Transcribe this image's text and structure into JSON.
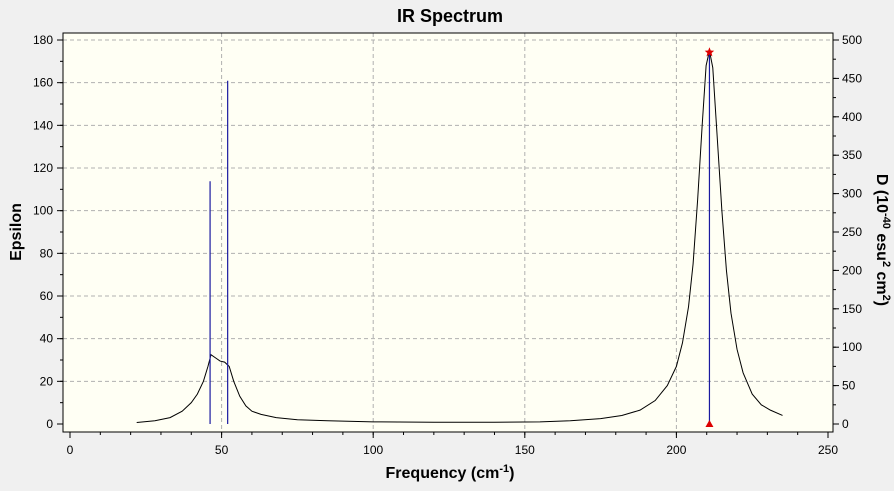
{
  "chart_data": {
    "type": "line",
    "title": "IR Spectrum",
    "xlabel": {
      "base": "Frequency (cm",
      "sup": "-1",
      "tail": ")"
    },
    "ylabel_left": "Epsilon",
    "ylabel_right": {
      "p1": "D (10",
      "sup1": "-40",
      "p2": " esu",
      "sup2": "2",
      "p3": " cm",
      "sup3": "2",
      "p4": ")"
    },
    "xlim": [
      0,
      250
    ],
    "ylim_left": [
      0,
      180
    ],
    "ylim_right": [
      0,
      500
    ],
    "x_ticks": [
      "0",
      "50",
      "100",
      "150",
      "200",
      "250"
    ],
    "y_left_ticks": [
      "0",
      "20",
      "40",
      "60",
      "80",
      "100",
      "120",
      "140",
      "160",
      "180"
    ],
    "y_right_ticks": [
      "0",
      "50",
      "100",
      "150",
      "200",
      "250",
      "300",
      "350",
      "400",
      "450",
      "500"
    ],
    "grid": true,
    "colors": {
      "spectrum": "#000000",
      "sticks": "#1a1aa0",
      "marker": "#dd0000",
      "plot_bg": "#fffff4",
      "grid": "#b0b0b0"
    },
    "series": [
      {
        "kind": "spectrum",
        "axis": "left",
        "points": [
          [
            22,
            0.7
          ],
          [
            28,
            1.5
          ],
          [
            33,
            3
          ],
          [
            37,
            6
          ],
          [
            40,
            10
          ],
          [
            42,
            14
          ],
          [
            44,
            20
          ],
          [
            45.5,
            27
          ],
          [
            46.5,
            32.5
          ],
          [
            48,
            31
          ],
          [
            49.5,
            29.5
          ],
          [
            51,
            29
          ],
          [
            52.5,
            27
          ],
          [
            54,
            20
          ],
          [
            56,
            13
          ],
          [
            58,
            8.5
          ],
          [
            60,
            6
          ],
          [
            63,
            4.5
          ],
          [
            68,
            3
          ],
          [
            75,
            2
          ],
          [
            85,
            1.5
          ],
          [
            100,
            1
          ],
          [
            120,
            0.8
          ],
          [
            140,
            0.8
          ],
          [
            155,
            1
          ],
          [
            165,
            1.5
          ],
          [
            175,
            2.5
          ],
          [
            182,
            4
          ],
          [
            188,
            6.5
          ],
          [
            193,
            11
          ],
          [
            197,
            18
          ],
          [
            200,
            27
          ],
          [
            202,
            38
          ],
          [
            204,
            55
          ],
          [
            205.5,
            75
          ],
          [
            207,
            105
          ],
          [
            208.5,
            140
          ],
          [
            209.8,
            168
          ],
          [
            210.9,
            175
          ],
          [
            212,
            167
          ],
          [
            213.3,
            138
          ],
          [
            215,
            100
          ],
          [
            216.5,
            72
          ],
          [
            218,
            52
          ],
          [
            220,
            35
          ],
          [
            222,
            24
          ],
          [
            225,
            14
          ],
          [
            228,
            9
          ],
          [
            231,
            6.5
          ],
          [
            235,
            4
          ]
        ]
      },
      {
        "kind": "sticks",
        "axis": "right",
        "x": [
          46.2,
          52.0,
          210.9
        ],
        "values": [
          316,
          447,
          484
        ]
      }
    ]
  }
}
